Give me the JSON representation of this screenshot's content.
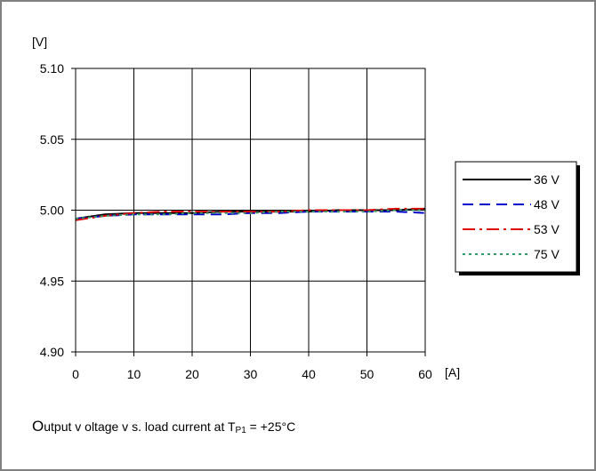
{
  "chart_data": {
    "type": "line",
    "ylabel": "[V]",
    "xlabel": "[A]",
    "xlim": [
      0,
      60
    ],
    "ylim": [
      4.9,
      5.1
    ],
    "x_ticks": [
      "0",
      "10",
      "20",
      "30",
      "40",
      "50",
      "60"
    ],
    "y_ticks": [
      "5.10",
      "5.05",
      "5.00",
      "4.95",
      "4.90"
    ],
    "grid": true,
    "legend_position": "right",
    "series": [
      {
        "name": "36 V",
        "color": "#000000",
        "style": "solid",
        "x": [
          0,
          5,
          10,
          15,
          20,
          25,
          30,
          35,
          40,
          45,
          50,
          55,
          60
        ],
        "y": [
          4.994,
          4.997,
          4.998,
          4.998,
          4.998,
          4.999,
          4.999,
          4.999,
          4.999,
          5.0,
          5.0,
          5.0,
          5.001
        ]
      },
      {
        "name": "48 V",
        "color": "#0000cc",
        "style": "dashed",
        "x": [
          0,
          5,
          10,
          15,
          20,
          25,
          30,
          35,
          40,
          45,
          50,
          55,
          60
        ],
        "y": [
          4.994,
          4.996,
          4.997,
          4.997,
          4.997,
          4.997,
          4.998,
          4.998,
          4.999,
          4.999,
          4.999,
          4.999,
          4.998
        ]
      },
      {
        "name": "53 V",
        "color": "#dd0000",
        "style": "dashdot",
        "x": [
          0,
          5,
          10,
          15,
          20,
          25,
          30,
          35,
          40,
          45,
          50,
          55,
          60
        ],
        "y": [
          4.993,
          4.996,
          4.998,
          4.999,
          4.999,
          4.999,
          4.999,
          4.999,
          5.0,
          5.0,
          5.0,
          5.001,
          5.001
        ]
      },
      {
        "name": "75 V",
        "color": "#339966",
        "style": "dotted",
        "x": [
          0,
          5,
          10,
          15,
          20,
          25,
          30,
          35,
          40,
          45,
          50,
          55,
          60
        ],
        "y": [
          4.994,
          4.996,
          4.997,
          4.997,
          4.998,
          4.998,
          4.998,
          4.999,
          4.999,
          4.999,
          4.999,
          5.0,
          5.0
        ]
      }
    ],
    "caption": {
      "lead": "O",
      "text": "utput v oltage v s. load current at T",
      "subscript": "P1",
      "tail": " = +25°C"
    }
  }
}
